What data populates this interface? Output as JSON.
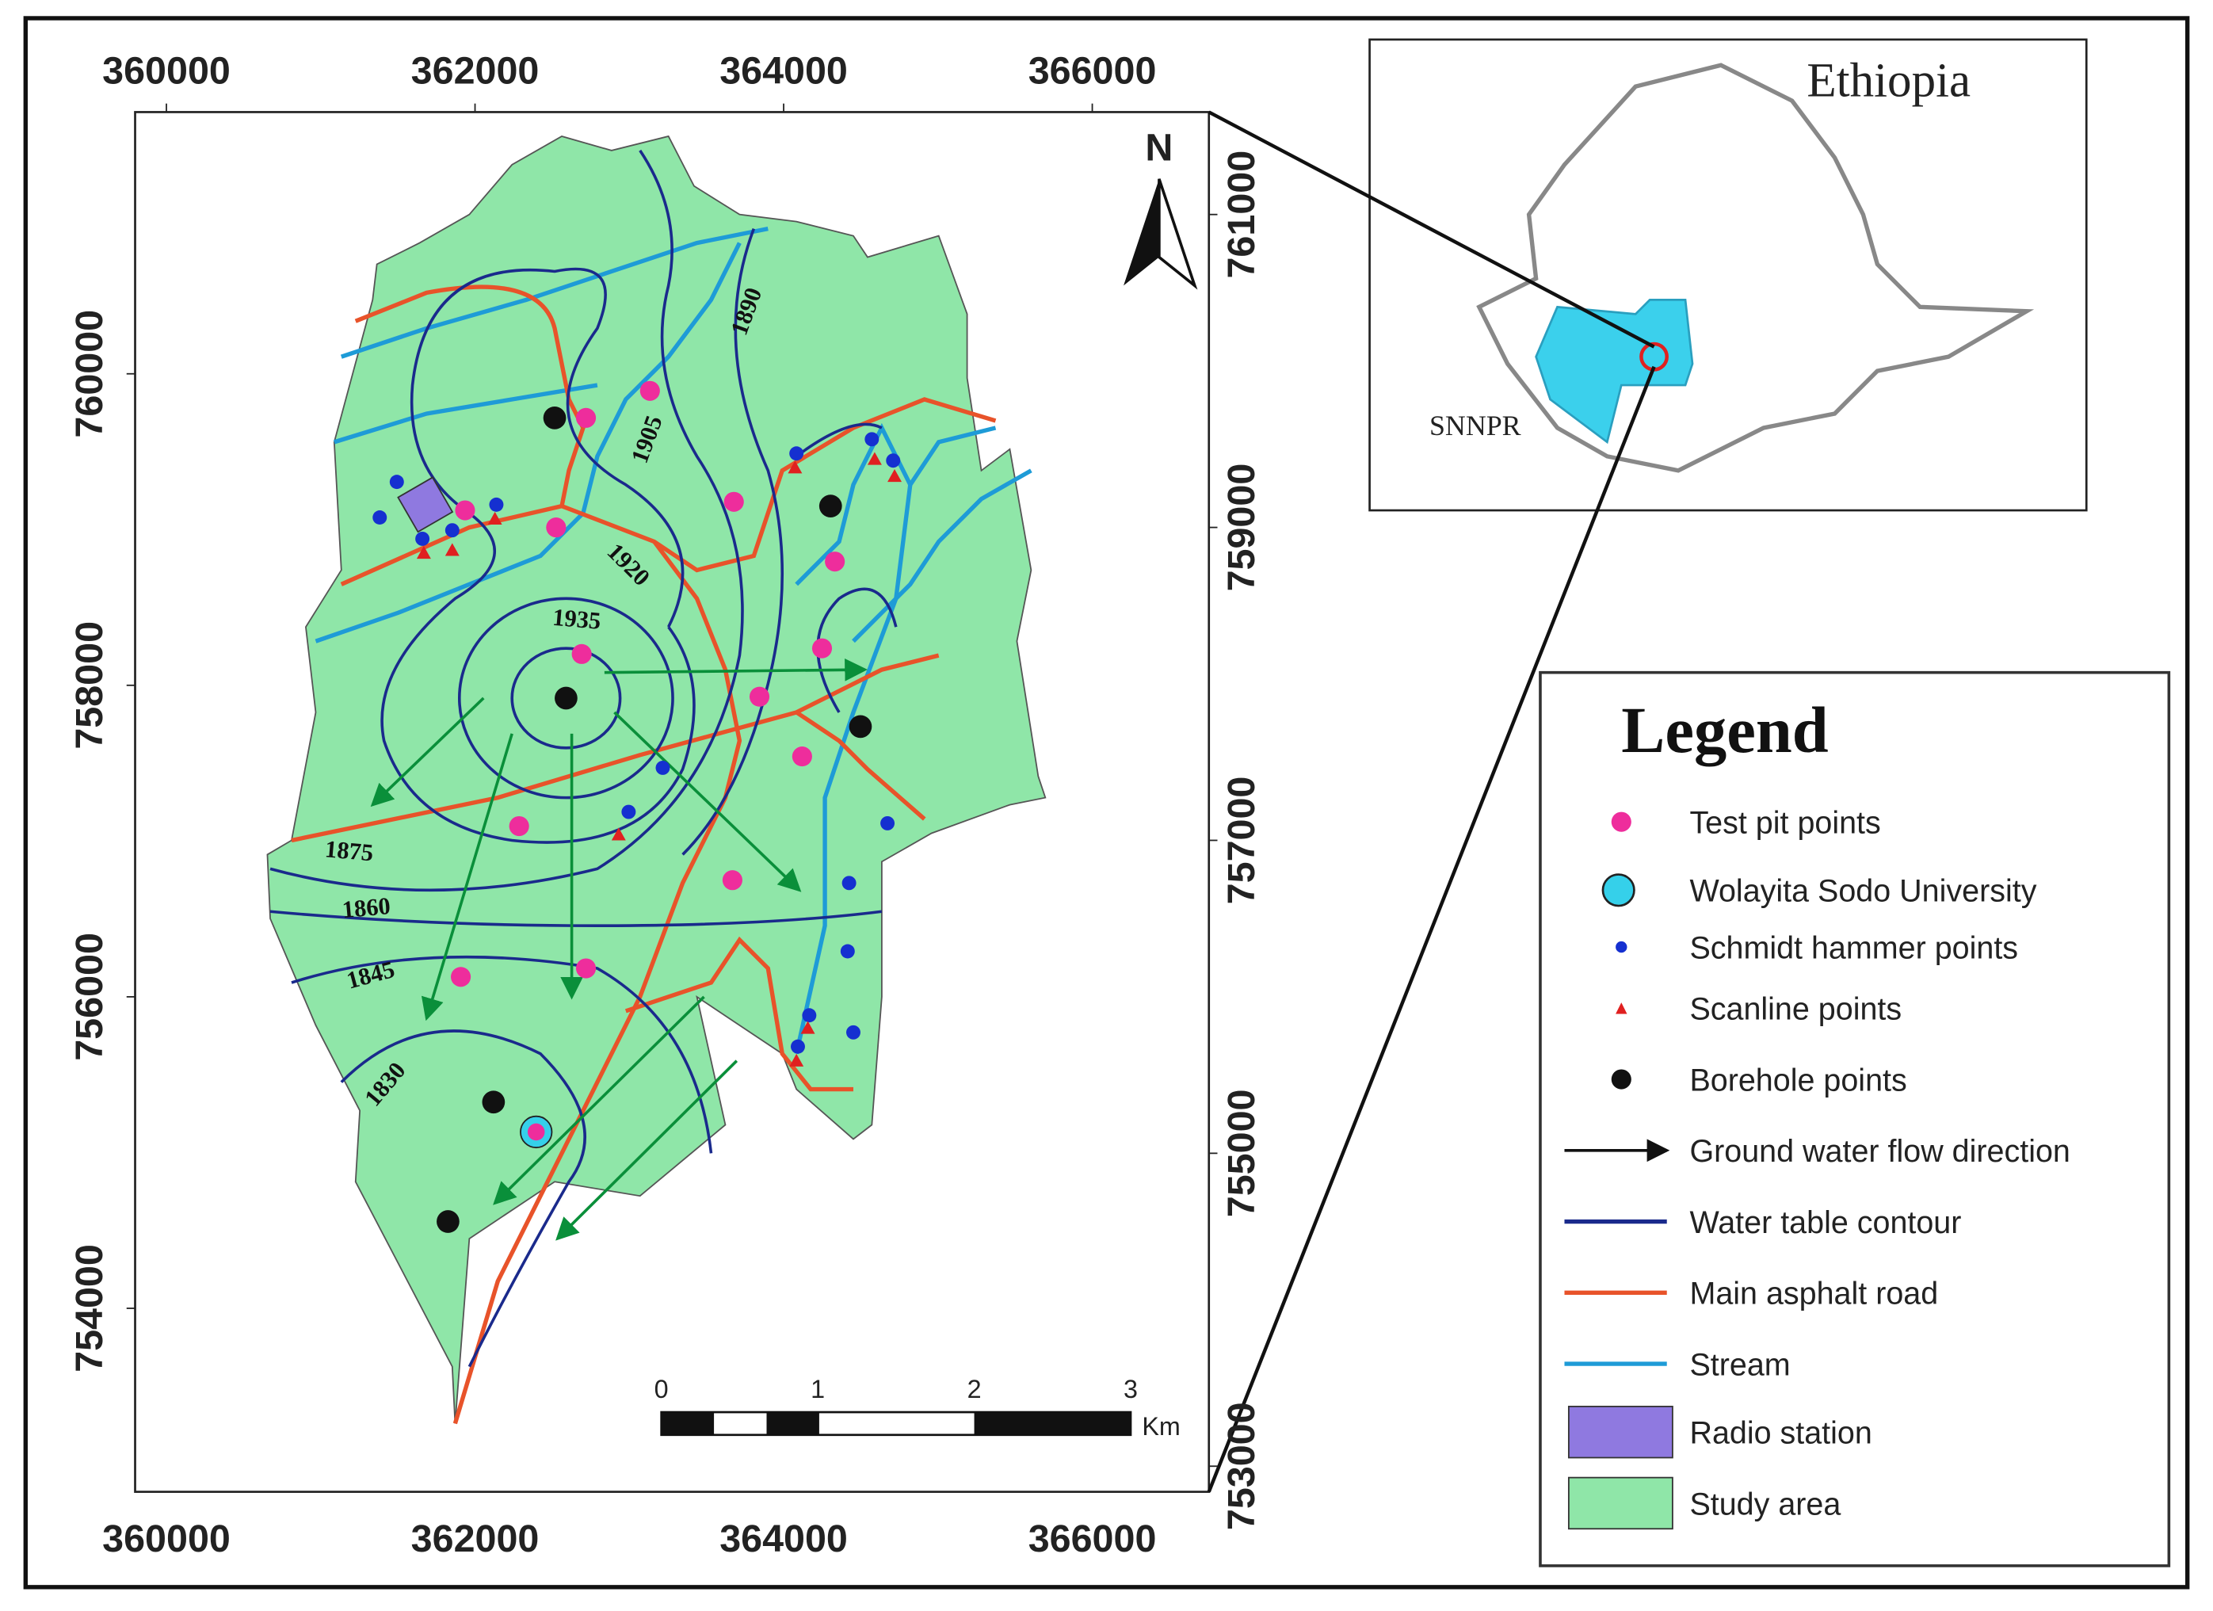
{
  "map": {
    "x_ticks_top": [
      "360000",
      "362000",
      "364000",
      "366000"
    ],
    "x_ticks_bottom": [
      "360000",
      "362000",
      "364000",
      "366000"
    ],
    "y_ticks_left": [
      "760000",
      "758000",
      "756000",
      "754000"
    ],
    "y_ticks_right": [
      "761000",
      "759000",
      "757000",
      "755000",
      "753000"
    ],
    "north": "N",
    "scale_bar": {
      "labels": [
        "0",
        "1",
        "2",
        "3"
      ],
      "unit": "Km"
    },
    "contour_labels": [
      "1905",
      "1890",
      "1920",
      "1935",
      "1875",
      "1860",
      "1845",
      "1830"
    ]
  },
  "inset": {
    "title": "Ethiopia",
    "region": "SNNPR"
  },
  "legend": {
    "title": "Legend",
    "items": [
      "Test pit points",
      "Wolayita Sodo University",
      "Schmidt hammer points",
      "Scanline points",
      "Borehole points",
      "Ground water flow direction",
      "Water table contour",
      "Main asphalt road",
      "Stream",
      "Radio station",
      "Study area"
    ]
  }
}
